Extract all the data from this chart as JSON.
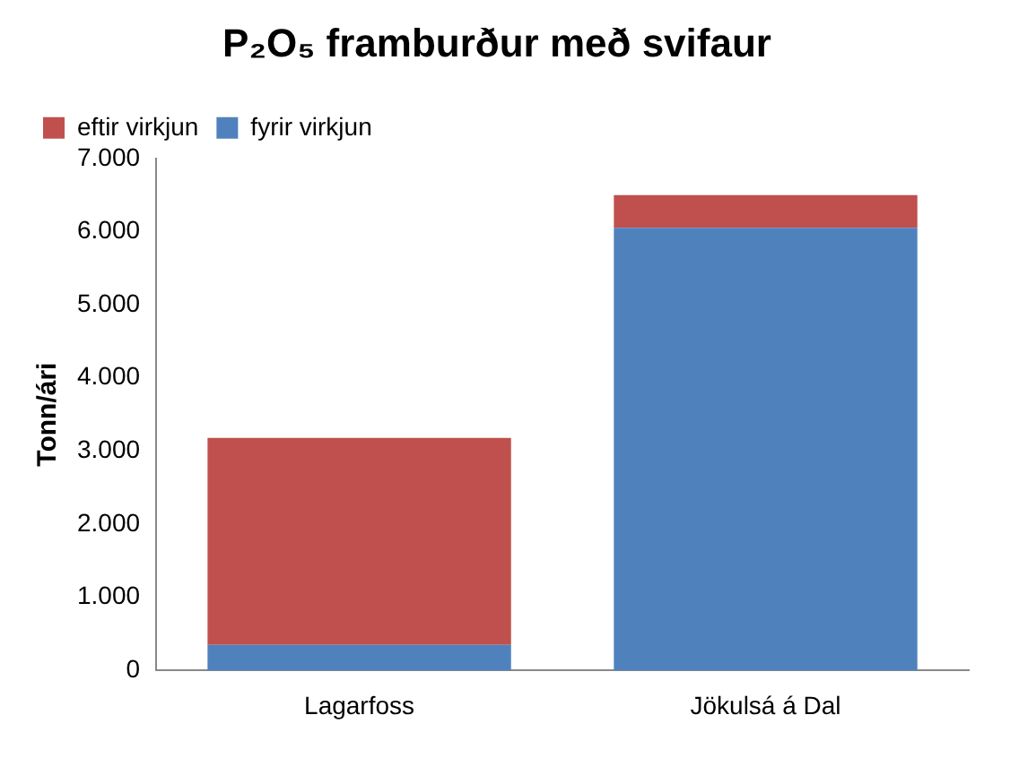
{
  "chart_data": {
    "type": "bar",
    "title": "P₂O₅ framburður með svifaur",
    "ylabel": "Tonn/ári",
    "categories": [
      "Lagarfoss",
      "Jökulsá á Dal"
    ],
    "stacked": true,
    "legend": "top left",
    "grid": false,
    "series": [
      {
        "name": "fyrir virkjun",
        "color": "#4f81bd",
        "values": [
          350,
          6050
        ]
      },
      {
        "name": "eftir virkjun",
        "color": "#c0504d",
        "values": [
          2830,
          450
        ]
      }
    ],
    "ylim": [
      0,
      7000
    ],
    "yticks": [
      {
        "value": 0,
        "label": "0"
      },
      {
        "value": 1000,
        "label": "1.000"
      },
      {
        "value": 2000,
        "label": "2.000"
      },
      {
        "value": 3000,
        "label": "3.000"
      },
      {
        "value": 4000,
        "label": "4.000"
      },
      {
        "value": 5000,
        "label": "5.000"
      },
      {
        "value": 6000,
        "label": "6.000"
      },
      {
        "value": 7000,
        "label": "7.000"
      }
    ]
  }
}
